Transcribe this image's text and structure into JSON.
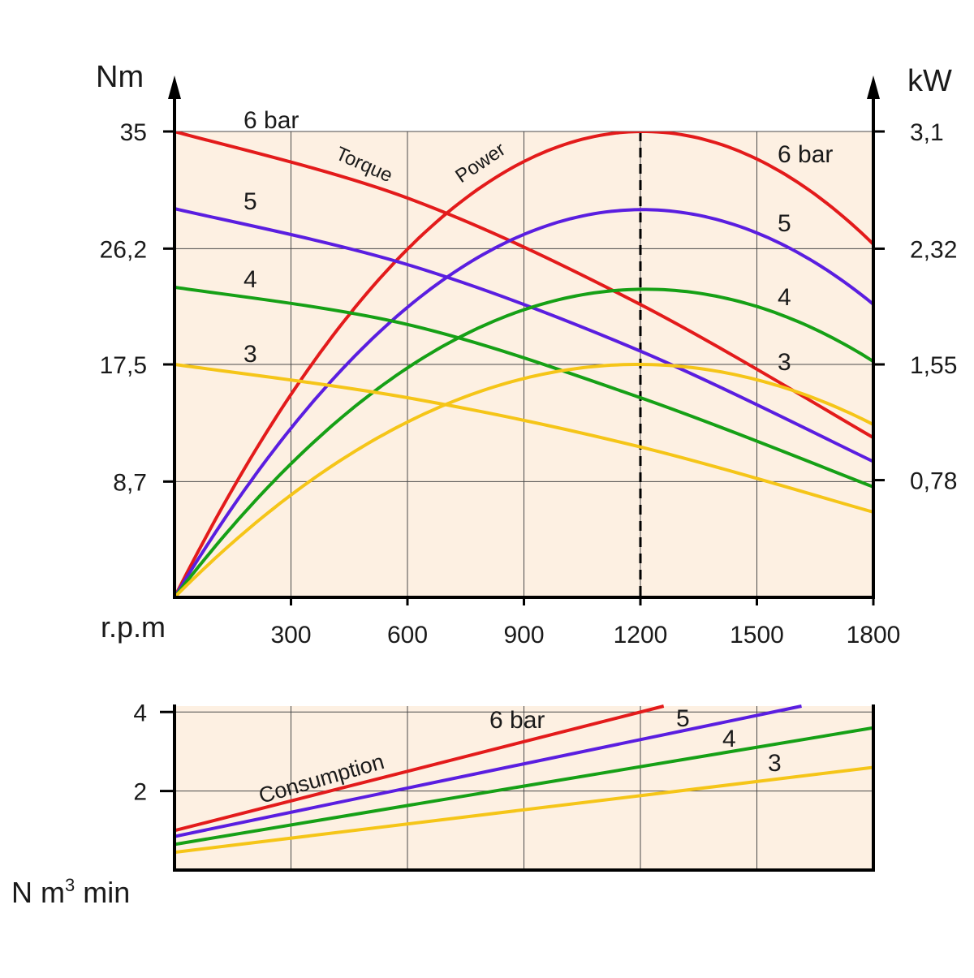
{
  "chart_data": [
    {
      "type": "line",
      "x_axis": {
        "label": "r.p.m",
        "ticks": [
          300,
          600,
          900,
          1200,
          1500,
          1800
        ],
        "range": [
          0,
          1800
        ]
      },
      "y_left": {
        "label": "Nm",
        "ticks": [
          "35",
          "26,2",
          "17,5",
          "8,7"
        ],
        "tick_values": [
          35,
          26.2,
          17.5,
          8.7
        ],
        "range": [
          0,
          35
        ]
      },
      "y_right": {
        "label": "kW",
        "ticks": [
          "3,1",
          "2,32",
          "1,55",
          "0,78"
        ],
        "tick_values": [
          3.1,
          2.32,
          1.55,
          0.78
        ],
        "range": [
          0,
          3.1
        ]
      },
      "grid": true,
      "max_power_marker": {
        "x": 1200,
        "style": "dashed"
      },
      "annotations": {
        "torque": "Torque",
        "power": "Power"
      },
      "series": [
        {
          "name": "6 bar",
          "left_label": "6 bar",
          "right_label": "6 bar",
          "color": "#e31b1b",
          "torque": {
            "x": [
              0,
              600,
              1200,
              1800
            ],
            "y": [
              35,
              30,
              22,
              12
            ]
          },
          "power": {
            "x": [
              0,
              1200,
              1800
            ],
            "y": [
              0,
              3.1,
              2.35
            ]
          }
        },
        {
          "name": "5",
          "left_label": "5",
          "right_label": "5",
          "color": "#5a1ee0",
          "torque": {
            "x": [
              0,
              600,
              1200,
              1800
            ],
            "y": [
              29.2,
              25,
              18.5,
              10.2
            ]
          },
          "power": {
            "x": [
              0,
              1200,
              1800
            ],
            "y": [
              0,
              2.58,
              1.95
            ]
          }
        },
        {
          "name": "4",
          "left_label": "4",
          "right_label": "4",
          "color": "#16a016",
          "torque": {
            "x": [
              0,
              600,
              1200,
              1800
            ],
            "y": [
              23.3,
              20.5,
              15,
              8.3
            ]
          },
          "power": {
            "x": [
              0,
              1200,
              1800
            ],
            "y": [
              0,
              2.05,
              1.57
            ]
          }
        },
        {
          "name": "3",
          "left_label": "3",
          "right_label": "3",
          "color": "#f5c518",
          "torque": {
            "x": [
              0,
              600,
              1200,
              1800
            ],
            "y": [
              17.5,
              15,
              11.3,
              6.4
            ]
          },
          "power": {
            "x": [
              0,
              1200,
              1800
            ],
            "y": [
              0,
              1.55,
              1.15
            ]
          }
        }
      ]
    },
    {
      "type": "line",
      "x_axis": {
        "range": [
          0,
          1800
        ]
      },
      "y_axis": {
        "label": "N m³ min",
        "label_main": "N m",
        "label_sup": "3",
        "label_tail": " min",
        "ticks": [
          "4",
          "2"
        ],
        "tick_values": [
          4,
          2
        ],
        "range": [
          0,
          4.15
        ]
      },
      "grid": true,
      "annotation": "Consumption",
      "series": [
        {
          "name": "6 bar",
          "label": "6 bar",
          "color": "#e31b1b",
          "x": [
            0,
            1260
          ],
          "y": [
            1.0,
            4.15
          ]
        },
        {
          "name": "5",
          "label": "5",
          "color": "#5a1ee0",
          "x": [
            0,
            1615
          ],
          "y": [
            0.85,
            4.15
          ]
        },
        {
          "name": "4",
          "label": "4",
          "color": "#16a016",
          "x": [
            0,
            1800
          ],
          "y": [
            0.65,
            3.6
          ]
        },
        {
          "name": "3",
          "label": "3",
          "color": "#f5c518",
          "x": [
            0,
            1800
          ],
          "y": [
            0.45,
            2.6
          ]
        }
      ]
    }
  ],
  "colors": {
    "background": "#fdf0e2",
    "grid": "#4a4a4a",
    "axis": "#000000"
  }
}
